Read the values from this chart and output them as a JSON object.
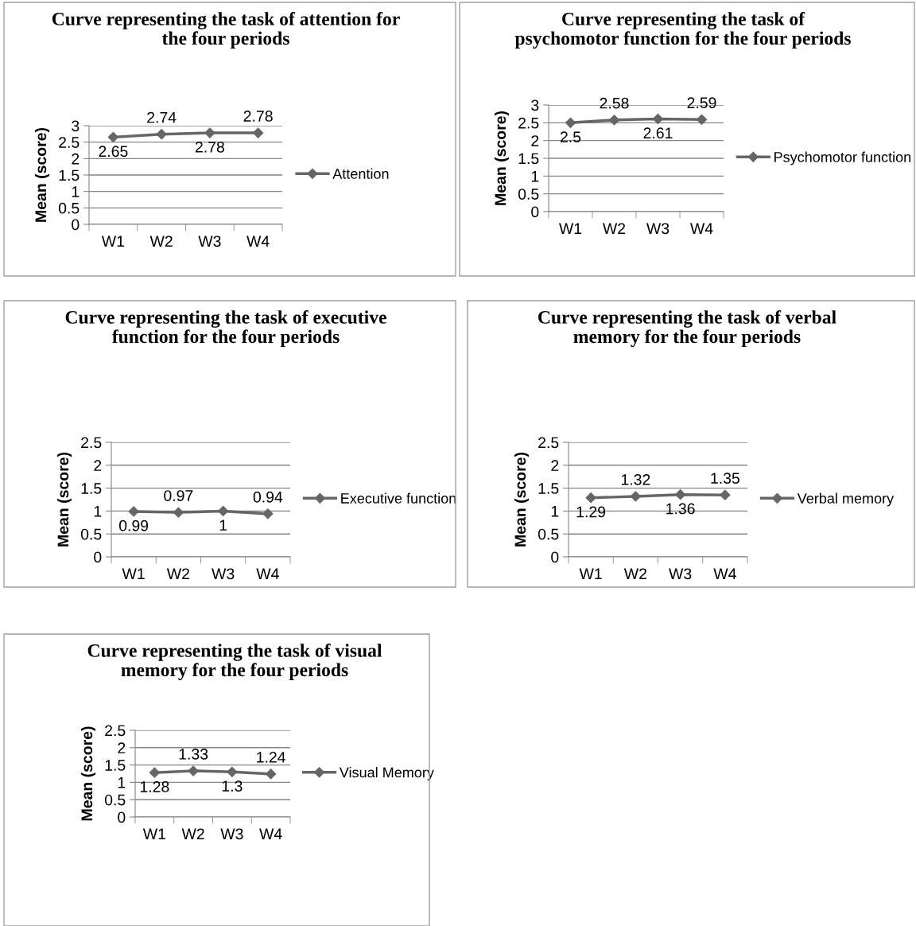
{
  "chart_data": [
    {
      "type": "line",
      "title": "Curve representing the task of attention for the four periods",
      "ylabel": "Mean (score)",
      "categories": [
        "W1",
        "W2",
        "W3",
        "W4"
      ],
      "series": [
        {
          "name": "Attention",
          "color": "#666666",
          "values": [
            2.65,
            2.74,
            2.78,
            2.78
          ]
        }
      ],
      "ylim": [
        0,
        3
      ],
      "yticks": [
        0,
        0.5,
        1,
        1.5,
        2,
        2.5,
        3
      ],
      "grid": "y",
      "legend": "right",
      "marker": "diamond",
      "line_style": "solid",
      "data_labels": true
    },
    {
      "type": "line",
      "title": "Curve representing the task of psychomotor function for the four periods",
      "ylabel": "Mean (score)",
      "categories": [
        "W1",
        "W2",
        "W3",
        "W4"
      ],
      "series": [
        {
          "name": "Psychomotor function",
          "color": "#666666",
          "values": [
            2.5,
            2.58,
            2.61,
            2.59
          ]
        }
      ],
      "ylim": [
        0,
        3
      ],
      "yticks": [
        0,
        0.5,
        1,
        1.5,
        2,
        2.5,
        3
      ],
      "grid": "y",
      "legend": "right",
      "marker": "diamond",
      "line_style": "solid",
      "data_labels": true
    },
    {
      "type": "line",
      "title": "Curve representing the task of executive function for the four periods",
      "ylabel": "Mean (score)",
      "categories": [
        "W1",
        "W2",
        "W3",
        "W4"
      ],
      "series": [
        {
          "name": "Executive function",
          "color": "#666666",
          "values": [
            0.99,
            0.97,
            1,
            0.94
          ]
        }
      ],
      "ylim": [
        0,
        2.5
      ],
      "yticks": [
        0,
        0.5,
        1,
        1.5,
        2,
        2.5
      ],
      "grid": "y",
      "legend": "right",
      "marker": "diamond",
      "line_style": "solid",
      "data_labels": true
    },
    {
      "type": "line",
      "title": "Curve representing the task of verbal memory for the four periods",
      "ylabel": "Mean (score)",
      "categories": [
        "W1",
        "W2",
        "W3",
        "W4"
      ],
      "series": [
        {
          "name": "Verbal memory",
          "color": "#666666",
          "values": [
            1.29,
            1.32,
            1.36,
            1.35
          ]
        }
      ],
      "ylim": [
        0,
        2.5
      ],
      "yticks": [
        0,
        0.5,
        1,
        1.5,
        2,
        2.5
      ],
      "grid": "y",
      "legend": "right",
      "marker": "diamond",
      "line_style": "solid",
      "data_labels": true
    },
    {
      "type": "line",
      "title": "Curve representing the task of visual memory for the four periods",
      "ylabel": "Mean (score)",
      "categories": [
        "W1",
        "W2",
        "W3",
        "W4"
      ],
      "series": [
        {
          "name": "Visual Memory",
          "color": "#666666",
          "values": [
            1.28,
            1.33,
            1.3,
            1.24
          ]
        }
      ],
      "ylim": [
        0,
        2.5
      ],
      "yticks": [
        0,
        0.5,
        1,
        1.5,
        2,
        2.5
      ],
      "grid": "y",
      "legend": "right",
      "marker": "diamond",
      "line_style": "solid",
      "data_labels": true
    }
  ]
}
